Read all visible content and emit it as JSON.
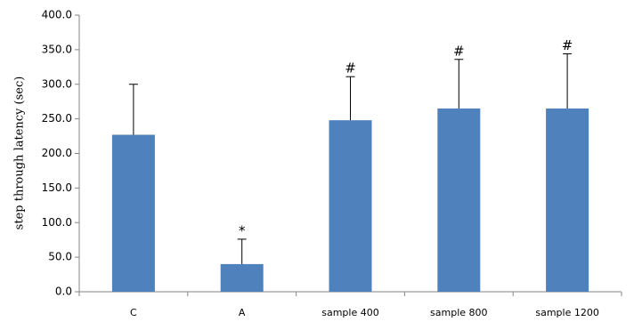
{
  "chart_data": {
    "type": "bar",
    "y_label": "step through latency (sec)",
    "categories": [
      "C",
      "A",
      "sample 400",
      "sample 800",
      "sample 1200"
    ],
    "values": [
      227,
      40,
      248,
      265,
      265
    ],
    "errors": [
      73,
      36,
      63,
      71,
      79
    ],
    "markers": [
      null,
      "*",
      "#",
      "#",
      "#"
    ],
    "color": "#4f81bd",
    "ylim": [
      0,
      400
    ],
    "yticks": [
      {
        "value": 0,
        "label": "0.0"
      },
      {
        "value": 50,
        "label": "50.0"
      },
      {
        "value": 100,
        "label": "100.0"
      },
      {
        "value": 150,
        "label": "150.0"
      },
      {
        "value": 200,
        "label": "200.0"
      },
      {
        "value": 250,
        "label": "250.0"
      },
      {
        "value": 300,
        "label": "300.0"
      },
      {
        "value": 350,
        "label": "350.0"
      },
      {
        "value": 400,
        "label": "400.0"
      }
    ],
    "grid": false
  }
}
